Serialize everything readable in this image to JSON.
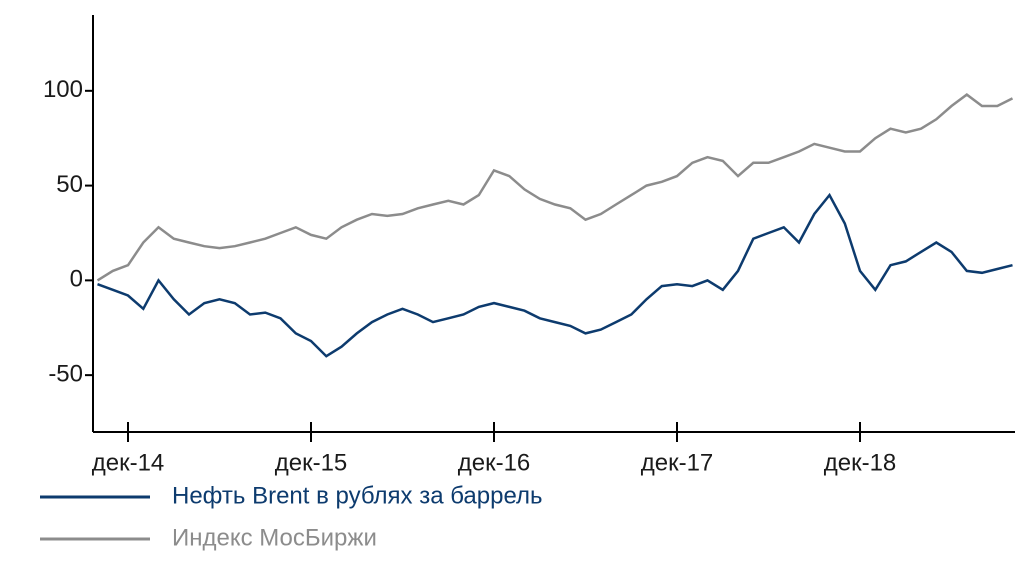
{
  "chart_data": {
    "type": "line",
    "categories": [
      null,
      null,
      "дек-14",
      null,
      null,
      null,
      null,
      null,
      null,
      null,
      null,
      null,
      null,
      null,
      "дек-15",
      null,
      null,
      null,
      null,
      null,
      null,
      null,
      null,
      null,
      null,
      null,
      "дек-16",
      null,
      null,
      null,
      null,
      null,
      null,
      null,
      null,
      null,
      null,
      null,
      "дек-17",
      null,
      null,
      null,
      null,
      null,
      null,
      null,
      null,
      null,
      null,
      null,
      "дек-18",
      null,
      null,
      null,
      null,
      null,
      null,
      null,
      null,
      null,
      null
    ],
    "series": [
      {
        "name": "Нефть Brent в рублях за баррель",
        "color": "#0d3b6e",
        "values": [
          -2,
          -5,
          -8,
          -15,
          0,
          -10,
          -18,
          -12,
          -10,
          -12,
          -18,
          -17,
          -20,
          -28,
          -32,
          -40,
          -35,
          -28,
          -22,
          -18,
          -15,
          -18,
          -22,
          -20,
          -18,
          -14,
          -12,
          -14,
          -16,
          -20,
          -22,
          -24,
          -28,
          -26,
          -22,
          -18,
          -10,
          -3,
          -2,
          -3,
          0,
          -5,
          5,
          22,
          25,
          28,
          20,
          35,
          45,
          30,
          5,
          -5,
          8,
          10,
          15,
          20,
          15,
          5,
          4,
          6,
          8
        ]
      },
      {
        "name": "Индекс МосБиржи",
        "color": "#8c8c8c",
        "values": [
          0,
          5,
          8,
          20,
          28,
          22,
          20,
          18,
          17,
          18,
          20,
          22,
          25,
          28,
          24,
          22,
          28,
          32,
          35,
          34,
          35,
          38,
          40,
          42,
          40,
          45,
          58,
          55,
          48,
          43,
          40,
          38,
          32,
          35,
          40,
          45,
          50,
          52,
          55,
          62,
          65,
          63,
          55,
          62,
          62,
          65,
          68,
          72,
          70,
          68,
          68,
          75,
          80,
          78,
          80,
          85,
          92,
          98,
          92,
          92,
          96
        ]
      }
    ],
    "ylim": [
      -80,
      140
    ],
    "yticks": [
      -50,
      0,
      50,
      100
    ],
    "grid": false,
    "legend": "bottom-left"
  }
}
